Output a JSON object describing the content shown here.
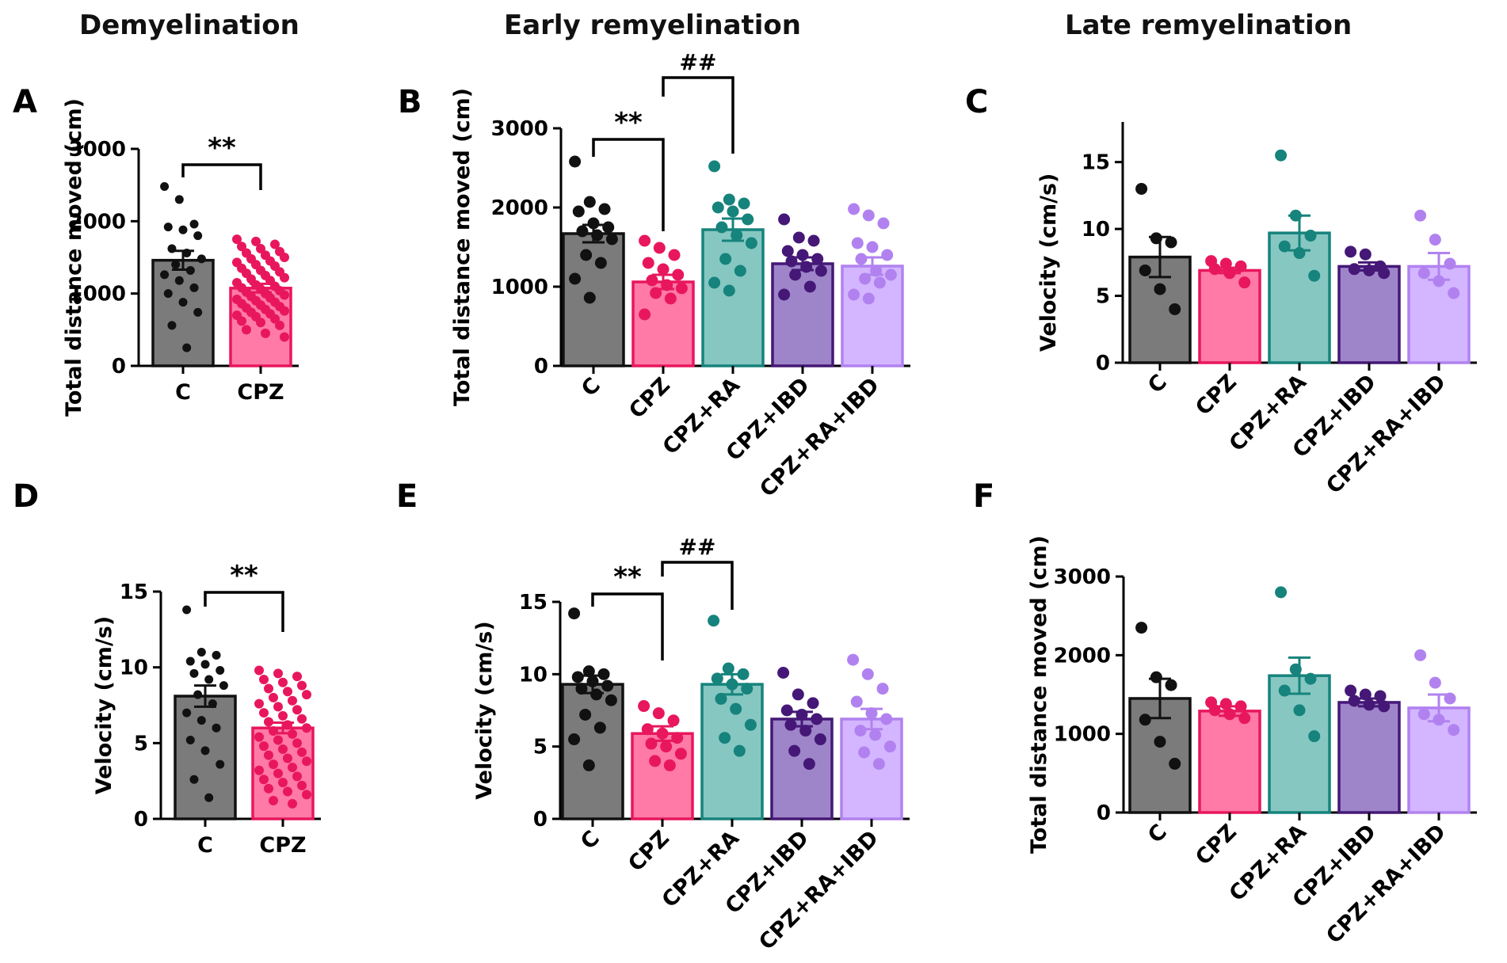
{
  "column_titles": [
    "Demyelination",
    "Early remyelination",
    "Late remyelination"
  ],
  "colors": {
    "C": "#7b7b7b",
    "CPZ": "#ff7aa6",
    "CPZ+RA": "#86c7c2",
    "CPZ+IBD": "#9e85c9",
    "CPZ+RA+IBD": "#d3b6ff",
    "C_edge": "#111111",
    "CPZ_edge": "#e8175d",
    "CPZ+RA_edge": "#16837c",
    "CPZ+IBD_edge": "#451877",
    "CPZ+RA+IBD_edge": "#b182ef"
  },
  "chart_data": [
    {
      "panel": "A",
      "type": "bar",
      "title": "",
      "xlabel": "",
      "ylabel": "Total distance moved (cm)",
      "ylim": [
        0,
        3000
      ],
      "yticks": [
        0,
        1000,
        2000,
        3000
      ],
      "categories": [
        "C",
        "CPZ"
      ],
      "values": [
        1460,
        1075
      ],
      "sem": [
        130,
        60
      ],
      "points": [
        [
          2480,
          2300,
          1960,
          1920,
          1880,
          1800,
          1620,
          1560,
          1480,
          1400,
          1320,
          1260,
          1180,
          1080,
          1000,
          880,
          740,
          560,
          250
        ],
        [
          1750,
          1720,
          1680,
          1650,
          1620,
          1580,
          1560,
          1530,
          1500,
          1480,
          1450,
          1430,
          1400,
          1380,
          1350,
          1320,
          1300,
          1280,
          1250,
          1220,
          1200,
          1180,
          1150,
          1120,
          1100,
          1080,
          1060,
          1040,
          1020,
          1000,
          980,
          960,
          940,
          920,
          900,
          880,
          860,
          840,
          820,
          800,
          780,
          760,
          740,
          720,
          700,
          680,
          650,
          620,
          600,
          560,
          500,
          450,
          400
        ]
      ],
      "annotations": [
        {
          "text": "**",
          "from": "C",
          "to": "CPZ"
        }
      ]
    },
    {
      "panel": "B",
      "type": "bar",
      "title": "",
      "xlabel": "",
      "ylabel": "Total distance moved (cm)",
      "ylim": [
        0,
        3000
      ],
      "yticks": [
        0,
        1000,
        2000,
        3000
      ],
      "categories": [
        "C",
        "CPZ",
        "CPZ+RA",
        "CPZ+IBD",
        "CPZ+RA+IBD"
      ],
      "values": [
        1670,
        1060,
        1720,
        1290,
        1260
      ],
      "sem": [
        110,
        90,
        140,
        80,
        110
      ],
      "points": [
        [
          2580,
          2070,
          1980,
          1950,
          1800,
          1750,
          1700,
          1650,
          1600,
          1400,
          1300,
          1100,
          860
        ],
        [
          1580,
          1490,
          1400,
          1300,
          1220,
          1150,
          1080,
          1020,
          980,
          920,
          850,
          650
        ],
        [
          2520,
          2100,
          2050,
          2000,
          1950,
          1850,
          1750,
          1650,
          1550,
          1350,
          1200,
          1050,
          950
        ],
        [
          1850,
          1620,
          1580,
          1450,
          1400,
          1350,
          1320,
          1250,
          1200,
          1150,
          1000,
          900
        ],
        [
          1980,
          1900,
          1800,
          1550,
          1500,
          1400,
          1350,
          1200,
          1150,
          1100,
          1050,
          900,
          850
        ]
      ],
      "annotations": [
        {
          "text": "**",
          "from": "C",
          "to": "CPZ"
        },
        {
          "text": "##",
          "from": "CPZ",
          "to": "CPZ+RA"
        }
      ]
    },
    {
      "panel": "C",
      "type": "bar",
      "title": "",
      "xlabel": "",
      "ylabel": "Velocity (cm/s)",
      "ylim": [
        0,
        18
      ],
      "yticks": [
        0,
        5,
        10,
        15
      ],
      "categories": [
        "C",
        "CPZ",
        "CPZ+RA",
        "CPZ+IBD",
        "CPZ+RA+IBD"
      ],
      "values": [
        7.9,
        6.9,
        9.7,
        7.2,
        7.2
      ],
      "sem": [
        1.5,
        0.2,
        1.3,
        0.3,
        1.0
      ],
      "points": [
        [
          13.0,
          9.3,
          9.0,
          6.9,
          5.5,
          4.0
        ],
        [
          7.6,
          7.4,
          7.2,
          7.0,
          6.7,
          6.0
        ],
        [
          15.5,
          11.0,
          9.5,
          8.7,
          8.2,
          6.5
        ],
        [
          8.3,
          8.1,
          7.2,
          7.0,
          6.9,
          6.7
        ],
        [
          11.0,
          9.2,
          7.4,
          6.7,
          6.1,
          5.2
        ]
      ],
      "annotations": []
    },
    {
      "panel": "D",
      "type": "bar",
      "title": "",
      "xlabel": "",
      "ylabel": "Velocity (cm/s)",
      "ylim": [
        0,
        15
      ],
      "yticks": [
        0,
        5,
        10,
        15
      ],
      "categories": [
        "C",
        "CPZ"
      ],
      "values": [
        8.1,
        6.0
      ],
      "sem": [
        0.7,
        0.35
      ],
      "points": [
        [
          13.8,
          11.0,
          10.8,
          10.4,
          10.2,
          9.8,
          9.6,
          9.2,
          8.8,
          8.2,
          7.6,
          7.0,
          6.5,
          6.0,
          5.2,
          4.5,
          3.6,
          2.6,
          1.4
        ],
        [
          9.8,
          9.6,
          9.4,
          9.2,
          9.0,
          8.8,
          8.6,
          8.4,
          8.2,
          8.0,
          7.8,
          7.6,
          7.4,
          7.2,
          7.0,
          6.8,
          6.6,
          6.4,
          6.2,
          6.0,
          5.8,
          5.6,
          5.4,
          5.2,
          5.0,
          4.8,
          4.6,
          4.4,
          4.2,
          4.0,
          3.8,
          3.6,
          3.4,
          3.2,
          3.0,
          2.8,
          2.6,
          2.4,
          2.2,
          2.0,
          1.8,
          1.6,
          1.2,
          1.0
        ]
      ],
      "annotations": [
        {
          "text": "**",
          "from": "C",
          "to": "CPZ"
        }
      ]
    },
    {
      "panel": "E",
      "type": "bar",
      "title": "",
      "xlabel": "",
      "ylabel": "Velocity (cm/s)",
      "ylim": [
        0,
        15
      ],
      "yticks": [
        0,
        5,
        10,
        15
      ],
      "categories": [
        "C",
        "CPZ",
        "CPZ+RA",
        "CPZ+IBD",
        "CPZ+RA+IBD"
      ],
      "values": [
        9.3,
        5.9,
        9.3,
        6.9,
        6.9
      ],
      "sem": [
        0.6,
        0.5,
        0.7,
        0.5,
        0.7
      ],
      "points": [
        [
          14.2,
          10.2,
          10.0,
          9.8,
          9.5,
          9.2,
          9.0,
          8.6,
          8.2,
          7.2,
          6.3,
          5.5,
          3.7
        ],
        [
          7.8,
          7.3,
          6.8,
          6.2,
          5.9,
          5.6,
          5.2,
          5.0,
          4.5,
          4.0,
          3.7
        ],
        [
          13.7,
          10.4,
          10.0,
          9.7,
          9.3,
          9.0,
          8.3,
          7.6,
          6.5,
          5.6,
          4.7
        ],
        [
          10.1,
          8.6,
          8.0,
          7.5,
          7.2,
          6.9,
          6.5,
          6.1,
          5.5,
          4.7,
          3.8
        ],
        [
          11.0,
          10.0,
          9.0,
          8.1,
          7.3,
          6.9,
          6.1,
          5.8,
          5.0,
          4.6,
          3.8
        ]
      ],
      "annotations": [
        {
          "text": "**",
          "from": "C",
          "to": "CPZ"
        },
        {
          "text": "##",
          "from": "CPZ",
          "to": "CPZ+RA"
        }
      ]
    },
    {
      "panel": "F",
      "type": "bar",
      "title": "",
      "xlabel": "",
      "ylabel": "Total distance moved (cm)",
      "ylim": [
        0,
        3000
      ],
      "yticks": [
        0,
        1000,
        2000,
        3000
      ],
      "categories": [
        "C",
        "CPZ",
        "CPZ+RA",
        "CPZ+IBD",
        "CPZ+RA+IBD"
      ],
      "values": [
        1450,
        1290,
        1740,
        1400,
        1330
      ],
      "sem": [
        250,
        60,
        230,
        50,
        170
      ],
      "points": [
        [
          2350,
          1720,
          1620,
          1180,
          900,
          620
        ],
        [
          1400,
          1380,
          1350,
          1300,
          1250,
          1200
        ],
        [
          2800,
          1820,
          1700,
          1550,
          1300,
          970
        ],
        [
          1550,
          1500,
          1480,
          1420,
          1370,
          1350
        ],
        [
          2000,
          1650,
          1450,
          1250,
          1180,
          1050
        ]
      ],
      "annotations": []
    }
  ]
}
